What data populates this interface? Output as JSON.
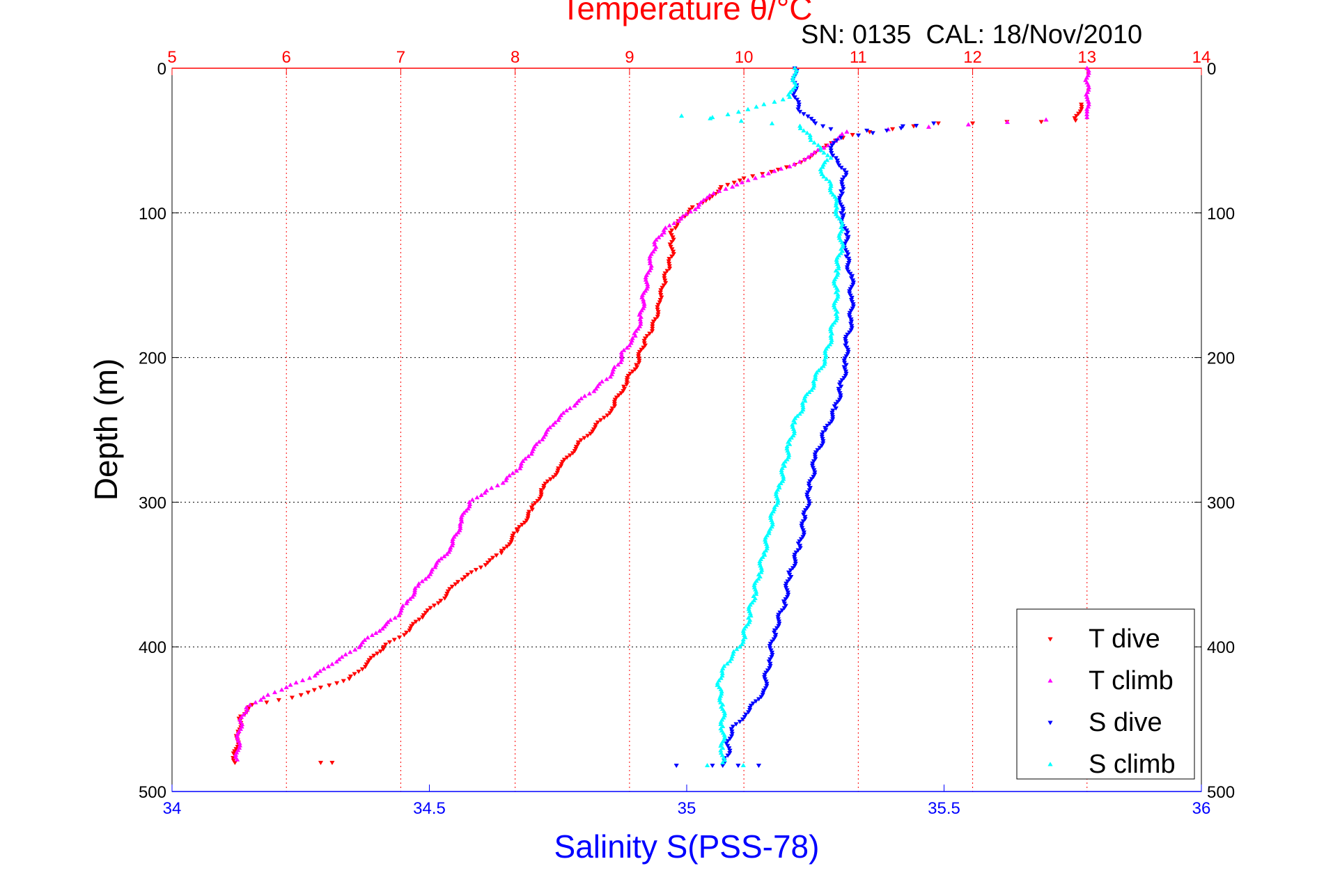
{
  "chart_data": {
    "type": "scatter",
    "title": "Temperature θ/°C",
    "subtitle": "SN: 0135  CAL: 18/Nov/2010",
    "xlabel": "Salinity S(PSS-78)",
    "ylabel": "Depth (m)",
    "top_axis_label": "Temperature θ/°C",
    "ylim": [
      0,
      500
    ],
    "y_reversed": true,
    "y_ticks": [
      0,
      100,
      200,
      300,
      400,
      500
    ],
    "x_bottom": {
      "label": "Salinity S(PSS-78)",
      "lim": [
        34,
        36
      ],
      "ticks": [
        "34",
        "34.5",
        "35",
        "35.5",
        "36"
      ],
      "color": "#0000ff"
    },
    "x_top": {
      "label": "Temperature θ/°C",
      "lim": [
        5,
        14
      ],
      "ticks": [
        "5",
        "6",
        "7",
        "8",
        "9",
        "10",
        "11",
        "12",
        "13",
        "14"
      ],
      "color": "#ff0000"
    },
    "grid": true,
    "legend_position": "bottom-right",
    "series": [
      {
        "name": "T dive",
        "axis": "top",
        "marker": "triangle-down",
        "color": "#ff0000",
        "points": [
          [
            12.95,
            25
          ],
          [
            12.9,
            36
          ],
          [
            12.6,
            37
          ],
          [
            12.3,
            37
          ],
          [
            12.0,
            38
          ],
          [
            11.7,
            38
          ],
          [
            11.3,
            42
          ],
          [
            11.1,
            44
          ],
          [
            10.95,
            46
          ],
          [
            10.8,
            50
          ],
          [
            10.7,
            55
          ],
          [
            10.6,
            60
          ],
          [
            10.5,
            65
          ],
          [
            10.3,
            70
          ],
          [
            10.0,
            76
          ],
          [
            9.8,
            82
          ],
          [
            9.7,
            90
          ],
          [
            9.55,
            96
          ],
          [
            9.45,
            104
          ],
          [
            9.37,
            112
          ],
          [
            9.37,
            120
          ],
          [
            9.37,
            130
          ],
          [
            9.33,
            140
          ],
          [
            9.3,
            150
          ],
          [
            9.27,
            160
          ],
          [
            9.25,
            170
          ],
          [
            9.2,
            180
          ],
          [
            9.13,
            190
          ],
          [
            9.06,
            205
          ],
          [
            8.95,
            220
          ],
          [
            8.85,
            235
          ],
          [
            8.7,
            248
          ],
          [
            8.55,
            260
          ],
          [
            8.4,
            275
          ],
          [
            8.25,
            290
          ],
          [
            8.15,
            305
          ],
          [
            8.02,
            320
          ],
          [
            7.88,
            335
          ],
          [
            7.7,
            345
          ],
          [
            7.5,
            355
          ],
          [
            7.35,
            368
          ],
          [
            7.2,
            378
          ],
          [
            7.05,
            390
          ],
          [
            6.85,
            400
          ],
          [
            6.7,
            412
          ],
          [
            6.55,
            422
          ],
          [
            6.3,
            428
          ],
          [
            6.05,
            435
          ],
          [
            5.7,
            440
          ],
          [
            5.6,
            448
          ],
          [
            5.58,
            460
          ],
          [
            5.55,
            475
          ],
          [
            5.55,
            480
          ],
          [
            6.3,
            480
          ],
          [
            6.4,
            480
          ]
        ]
      },
      {
        "name": "T climb",
        "axis": "top",
        "marker": "triangle-up",
        "color": "#ff00ff",
        "points": [
          [
            13.0,
            0
          ],
          [
            13.0,
            10
          ],
          [
            13.0,
            20
          ],
          [
            13.0,
            30
          ],
          [
            13.0,
            34
          ],
          [
            10.9,
            44
          ],
          [
            10.7,
            55
          ],
          [
            10.4,
            68
          ],
          [
            10.1,
            76
          ],
          [
            9.9,
            82
          ],
          [
            9.7,
            88
          ],
          [
            9.6,
            96
          ],
          [
            9.45,
            104
          ],
          [
            9.3,
            112
          ],
          [
            9.22,
            122
          ],
          [
            9.18,
            135
          ],
          [
            9.15,
            148
          ],
          [
            9.12,
            160
          ],
          [
            9.1,
            172
          ],
          [
            9.05,
            185
          ],
          [
            8.95,
            195
          ],
          [
            8.9,
            205
          ],
          [
            8.8,
            215
          ],
          [
            8.65,
            225
          ],
          [
            8.48,
            235
          ],
          [
            8.35,
            245
          ],
          [
            8.25,
            255
          ],
          [
            8.15,
            265
          ],
          [
            8.05,
            275
          ],
          [
            7.92,
            285
          ],
          [
            7.75,
            292
          ],
          [
            7.6,
            300
          ],
          [
            7.52,
            315
          ],
          [
            7.45,
            330
          ],
          [
            7.3,
            345
          ],
          [
            7.15,
            358
          ],
          [
            7.05,
            370
          ],
          [
            6.95,
            380
          ],
          [
            6.75,
            392
          ],
          [
            6.6,
            402
          ],
          [
            6.4,
            412
          ],
          [
            6.25,
            420
          ],
          [
            6.0,
            428
          ],
          [
            5.8,
            435
          ],
          [
            5.65,
            442
          ],
          [
            5.6,
            452
          ],
          [
            5.58,
            465
          ],
          [
            5.57,
            478
          ]
        ]
      },
      {
        "name": "S dive",
        "axis": "bottom",
        "marker": "triangle-down",
        "color": "#0000ff",
        "points": [
          [
            35.21,
            0
          ],
          [
            35.21,
            10
          ],
          [
            35.21,
            20
          ],
          [
            35.22,
            30
          ],
          [
            35.25,
            38
          ],
          [
            35.28,
            42
          ],
          [
            35.35,
            43
          ],
          [
            35.42,
            40
          ],
          [
            35.48,
            38
          ],
          [
            35.3,
            48
          ],
          [
            35.28,
            55
          ],
          [
            35.29,
            62
          ],
          [
            35.31,
            72
          ],
          [
            35.3,
            85
          ],
          [
            35.3,
            100
          ],
          [
            35.31,
            115
          ],
          [
            35.31,
            130
          ],
          [
            35.32,
            145
          ],
          [
            35.32,
            160
          ],
          [
            35.32,
            175
          ],
          [
            35.31,
            190
          ],
          [
            35.31,
            205
          ],
          [
            35.3,
            220
          ],
          [
            35.29,
            235
          ],
          [
            35.27,
            250
          ],
          [
            35.25,
            270
          ],
          [
            35.24,
            290
          ],
          [
            35.23,
            310
          ],
          [
            35.22,
            330
          ],
          [
            35.2,
            350
          ],
          [
            35.19,
            370
          ],
          [
            35.17,
            390
          ],
          [
            35.16,
            410
          ],
          [
            35.15,
            430
          ],
          [
            35.12,
            445
          ],
          [
            35.09,
            455
          ],
          [
            35.08,
            465
          ],
          [
            35.08,
            475
          ],
          [
            35.07,
            482
          ],
          [
            34.98,
            482
          ],
          [
            35.05,
            482
          ],
          [
            35.1,
            482
          ],
          [
            35.14,
            482
          ]
        ]
      },
      {
        "name": "S climb",
        "axis": "bottom",
        "marker": "triangle-up",
        "color": "#00ffff",
        "points": [
          [
            35.21,
            0
          ],
          [
            35.21,
            10
          ],
          [
            35.2,
            20
          ],
          [
            35.15,
            25
          ],
          [
            35.08,
            32
          ],
          [
            35.05,
            34
          ],
          [
            34.99,
            33
          ],
          [
            35.22,
            40
          ],
          [
            35.24,
            48
          ],
          [
            35.26,
            55
          ],
          [
            35.28,
            62
          ],
          [
            35.26,
            70
          ],
          [
            35.28,
            80
          ],
          [
            35.29,
            95
          ],
          [
            35.3,
            110
          ],
          [
            35.3,
            125
          ],
          [
            35.29,
            140
          ],
          [
            35.29,
            155
          ],
          [
            35.29,
            170
          ],
          [
            35.28,
            185
          ],
          [
            35.27,
            200
          ],
          [
            35.25,
            215
          ],
          [
            35.23,
            230
          ],
          [
            35.21,
            245
          ],
          [
            35.2,
            260
          ],
          [
            35.19,
            275
          ],
          [
            35.18,
            290
          ],
          [
            35.17,
            305
          ],
          [
            35.16,
            320
          ],
          [
            35.15,
            335
          ],
          [
            35.14,
            350
          ],
          [
            35.13,
            365
          ],
          [
            35.12,
            380
          ],
          [
            35.11,
            395
          ],
          [
            35.09,
            405
          ],
          [
            35.07,
            415
          ],
          [
            35.06,
            425
          ],
          [
            35.07,
            440
          ],
          [
            35.07,
            455
          ],
          [
            35.07,
            470
          ],
          [
            35.07,
            480
          ],
          [
            35.04,
            482
          ],
          [
            35.11,
            482
          ]
        ]
      }
    ]
  }
}
